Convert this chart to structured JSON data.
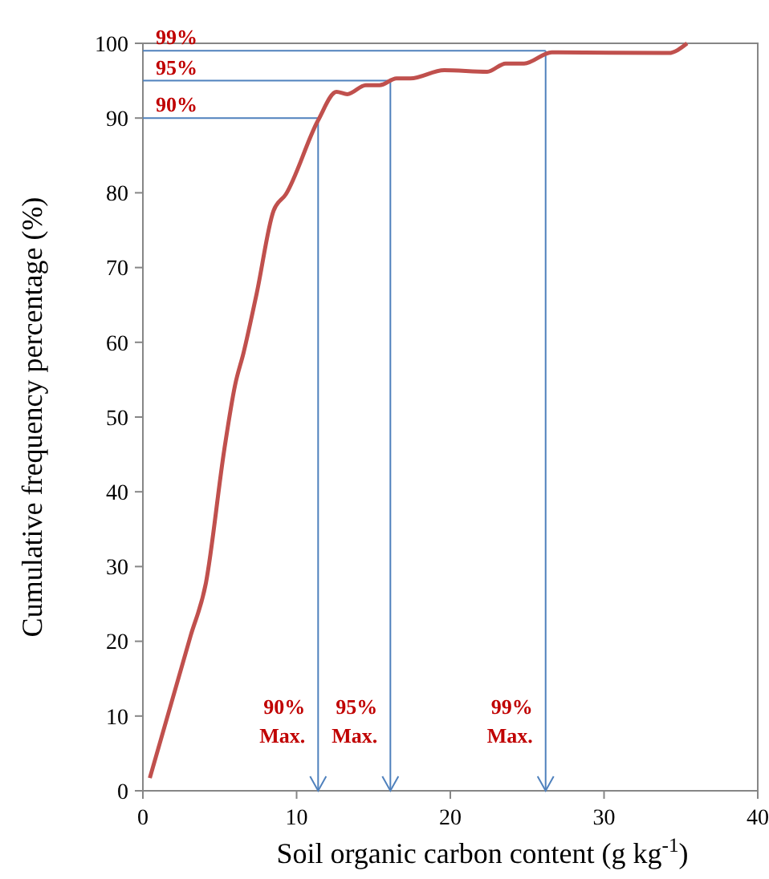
{
  "chart_data": {
    "type": "line",
    "xlabel": "Soil organic carbon content (g kg$^{-1}$)",
    "ylabel": "Cumulative frequency percentage (%)",
    "xlim": [
      0,
      40
    ],
    "xticks": [
      0,
      10,
      20,
      30,
      40
    ],
    "ylim": [
      0,
      100
    ],
    "yticks": [
      0,
      10,
      20,
      30,
      40,
      50,
      60,
      70,
      80,
      90,
      100
    ],
    "grid": false,
    "marker": "none",
    "line_style": "solid",
    "series": [
      {
        "color": "#c0504d",
        "x": [
          0.45,
          3.1,
          4.1,
          5.3,
          6,
          6.55,
          7.4,
          8.5,
          9.3,
          11.4,
          12.6,
          13.3,
          14.5,
          15.4,
          16.5,
          17.4,
          19.6,
          22.4,
          23.6,
          24.8,
          26.6,
          34.2,
          35.4
        ],
        "values": [
          1.7,
          20.7,
          27.8,
          45.7,
          54.3,
          58.6,
          66.5,
          77.6,
          79.8,
          89.7,
          93.5,
          93.2,
          94.4,
          94.4,
          95.3,
          95.3,
          96.4,
          96.2,
          97.3,
          97.3,
          98.8,
          98.7,
          100
        ]
      }
    ],
    "ref_lines": [
      {
        "axis": "y",
        "value": 90,
        "label": "90%",
        "color": "#4f81bd"
      },
      {
        "axis": "y",
        "value": 95,
        "label": "95%",
        "color": "#4f81bd"
      },
      {
        "axis": "y",
        "value": 99,
        "label": "99%",
        "color": "#4f81bd"
      },
      {
        "axis": "x",
        "value": 11.4,
        "label": "90%\nMax.",
        "color": "#4f81bd"
      },
      {
        "axis": "x",
        "value": 16.1,
        "label": "95%\nMax.",
        "color": "#4f81bd"
      },
      {
        "axis": "x",
        "value": 26.2,
        "label": "99%\nMax.",
        "color": "#4f81bd"
      }
    ]
  }
}
